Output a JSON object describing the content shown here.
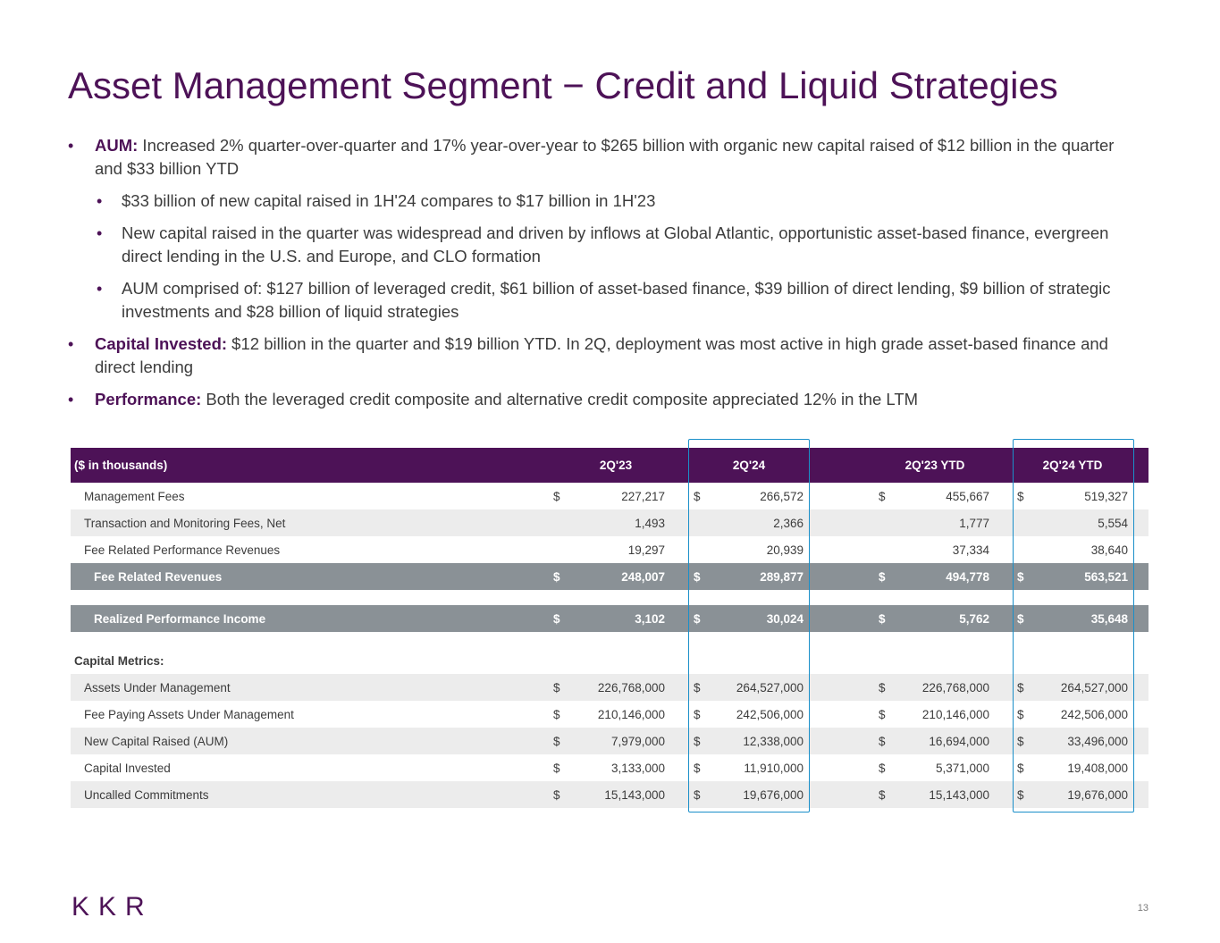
{
  "title": "Asset Management Segment − Credit and Liquid Strategies",
  "bullets": {
    "aum_label": "AUM:",
    "aum_text": " Increased 2% quarter-over-quarter and 17% year-over-year to $265 billion with organic new capital raised of $12 billion in the quarter and $33 billion YTD",
    "sub1": "$33 billion of new capital raised in 1H'24 compares to $17 billion in 1H'23",
    "sub2": "New capital raised in the quarter was widespread and driven by inflows at Global Atlantic, opportunistic asset-based finance, evergreen direct lending in the U.S. and Europe, and CLO formation",
    "sub3": "AUM comprised of: $127 billion of leveraged credit, $61 billion of asset-based finance, $39 billion of direct lending, $9 billion of strategic investments and $28 billion of liquid strategies",
    "capital_label": "Capital Invested:",
    "capital_text": " $12 billion in the quarter and $19 billion YTD. In 2Q, deployment was most active in high grade asset-based finance and direct lending",
    "perf_label": "Performance:",
    "perf_text": " Both the leveraged credit composite and alternative credit composite appreciated 12% in the LTM"
  },
  "table": {
    "unit_label": "($ in thousands)",
    "columns": [
      "2Q'23",
      "2Q'24",
      "2Q'23 YTD",
      "2Q'24 YTD"
    ],
    "dollar": "$",
    "rows": [
      {
        "label": "Management Fees",
        "values": [
          "227,217",
          "266,572",
          "455,667",
          "519,327"
        ]
      },
      {
        "label": "Transaction and Monitoring Fees, Net",
        "values": [
          "1,493",
          "2,366",
          "1,777",
          "5,554"
        ]
      },
      {
        "label": "Fee Related Performance Revenues",
        "values": [
          "19,297",
          "20,939",
          "37,334",
          "38,640"
        ]
      },
      {
        "label": "Fee Related Revenues",
        "values": [
          "248,007",
          "289,877",
          "494,778",
          "563,521"
        ]
      },
      {
        "label": "Realized Performance Income",
        "values": [
          "3,102",
          "30,024",
          "5,762",
          "35,648"
        ]
      }
    ],
    "capital_metrics_label": "Capital Metrics:",
    "capital_rows": [
      {
        "label": "Assets Under Management",
        "values": [
          "226,768,000",
          "264,527,000",
          "226,768,000",
          "264,527,000"
        ]
      },
      {
        "label": "Fee Paying Assets Under Management",
        "values": [
          "210,146,000",
          "242,506,000",
          "210,146,000",
          "242,506,000"
        ]
      },
      {
        "label": "New Capital Raised (AUM)",
        "values": [
          "7,979,000",
          "12,338,000",
          "16,694,000",
          "33,496,000"
        ]
      },
      {
        "label": "Capital Invested",
        "values": [
          "3,133,000",
          "11,910,000",
          "5,371,000",
          "19,408,000"
        ]
      },
      {
        "label": "Uncalled Commitments",
        "values": [
          "15,143,000",
          "19,676,000",
          "15,143,000",
          "19,676,000"
        ]
      }
    ]
  },
  "footer": {
    "logo": "KKR",
    "page_number": "13"
  },
  "colors": {
    "brand_purple": "#4d1257",
    "total_gray": "#8a9196",
    "highlight_blue": "#1a8fc9"
  }
}
